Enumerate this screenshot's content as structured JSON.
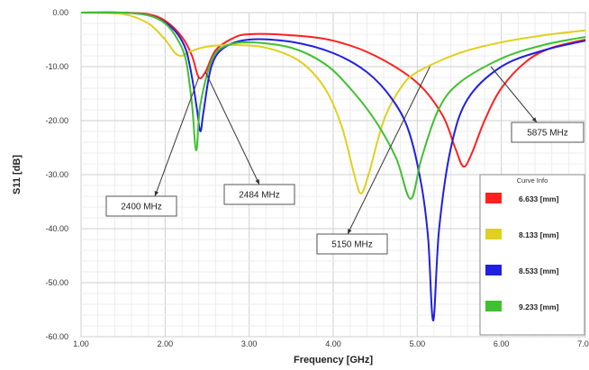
{
  "chart_data": {
    "type": "line",
    "title": "",
    "xlabel": "Frequency [GHz]",
    "ylabel": "S11 [dB]",
    "xlim": [
      1.0,
      7.0
    ],
    "ylim": [
      -60.0,
      0.0
    ],
    "x_ticks": [
      "1.00",
      "2.00",
      "3.00",
      "4.00",
      "5.00",
      "6.00",
      "7.00"
    ],
    "y_ticks": [
      "0.00",
      "-10.00",
      "-20.00",
      "-30.00",
      "-40.00",
      "-50.00",
      "-60.00"
    ],
    "grid": true,
    "legend": {
      "title": "Curve Info",
      "placement": "bottom-right"
    },
    "series": [
      {
        "name": "6.633 [mm]",
        "color": "#ff2020",
        "points": [
          [
            1.0,
            0
          ],
          [
            1.5,
            0
          ],
          [
            1.8,
            -0.3
          ],
          [
            2.0,
            -1.5
          ],
          [
            2.2,
            -4.5
          ],
          [
            2.32,
            -8
          ],
          [
            2.4,
            -12
          ],
          [
            2.48,
            -11
          ],
          [
            2.6,
            -7
          ],
          [
            2.8,
            -4.8
          ],
          [
            3.0,
            -4
          ],
          [
            3.5,
            -4.2
          ],
          [
            4.0,
            -5.2
          ],
          [
            4.5,
            -8
          ],
          [
            5.0,
            -13
          ],
          [
            5.3,
            -19
          ],
          [
            5.45,
            -25
          ],
          [
            5.55,
            -28.5
          ],
          [
            5.65,
            -26
          ],
          [
            5.8,
            -20
          ],
          [
            6.0,
            -14
          ],
          [
            6.3,
            -9
          ],
          [
            6.6,
            -6.5
          ],
          [
            7.0,
            -5
          ]
        ]
      },
      {
        "name": "8.133 [mm]",
        "color": "#e0d020",
        "points": [
          [
            1.0,
            0
          ],
          [
            1.5,
            -0.3
          ],
          [
            1.8,
            -2
          ],
          [
            2.0,
            -5
          ],
          [
            2.12,
            -7.5
          ],
          [
            2.2,
            -8
          ],
          [
            2.3,
            -7.2
          ],
          [
            2.5,
            -6.3
          ],
          [
            2.8,
            -6
          ],
          [
            3.2,
            -6.5
          ],
          [
            3.6,
            -9
          ],
          [
            3.9,
            -14
          ],
          [
            4.1,
            -21
          ],
          [
            4.25,
            -30
          ],
          [
            4.33,
            -33.5
          ],
          [
            4.42,
            -30
          ],
          [
            4.6,
            -20
          ],
          [
            4.8,
            -14
          ],
          [
            5.0,
            -11
          ],
          [
            5.5,
            -7.5
          ],
          [
            6.0,
            -5.5
          ],
          [
            6.5,
            -4.2
          ],
          [
            7.0,
            -3.3
          ]
        ]
      },
      {
        "name": "8.533 [mm]",
        "color": "#2020e0",
        "points": [
          [
            1.0,
            0
          ],
          [
            1.5,
            0
          ],
          [
            1.8,
            -0.5
          ],
          [
            2.0,
            -1.8
          ],
          [
            2.15,
            -4
          ],
          [
            2.25,
            -7
          ],
          [
            2.32,
            -12
          ],
          [
            2.38,
            -18
          ],
          [
            2.42,
            -22
          ],
          [
            2.46,
            -18
          ],
          [
            2.55,
            -10
          ],
          [
            2.7,
            -6.5
          ],
          [
            3.0,
            -5
          ],
          [
            3.5,
            -5.4
          ],
          [
            4.0,
            -7.5
          ],
          [
            4.4,
            -11
          ],
          [
            4.7,
            -16
          ],
          [
            4.9,
            -22
          ],
          [
            5.05,
            -32
          ],
          [
            5.13,
            -42
          ],
          [
            5.19,
            -57
          ],
          [
            5.26,
            -40
          ],
          [
            5.4,
            -25
          ],
          [
            5.6,
            -16
          ],
          [
            6.0,
            -10
          ],
          [
            6.5,
            -7
          ],
          [
            7.0,
            -5.2
          ]
        ]
      },
      {
        "name": "9.233 [mm]",
        "color": "#40c030",
        "points": [
          [
            1.0,
            0
          ],
          [
            1.5,
            0
          ],
          [
            1.8,
            -0.5
          ],
          [
            2.0,
            -2
          ],
          [
            2.15,
            -5
          ],
          [
            2.25,
            -9
          ],
          [
            2.32,
            -17
          ],
          [
            2.37,
            -25.5
          ],
          [
            2.42,
            -17
          ],
          [
            2.55,
            -9
          ],
          [
            2.7,
            -6.3
          ],
          [
            3.0,
            -5.5
          ],
          [
            3.5,
            -6.5
          ],
          [
            3.9,
            -9.5
          ],
          [
            4.2,
            -14
          ],
          [
            4.5,
            -20
          ],
          [
            4.75,
            -27
          ],
          [
            4.92,
            -34.5
          ],
          [
            5.05,
            -27
          ],
          [
            5.25,
            -18
          ],
          [
            5.5,
            -13
          ],
          [
            6.0,
            -8.5
          ],
          [
            6.5,
            -6
          ],
          [
            7.0,
            -4.5
          ]
        ]
      }
    ],
    "annotations": [
      {
        "text": "2400 MHz",
        "target": [
          2.4,
          -12
        ]
      },
      {
        "text": "2484 MHz",
        "target": [
          2.48,
          -11
        ]
      },
      {
        "text": "5150 MHz",
        "target": [
          5.15,
          -10
        ]
      },
      {
        "text": "5875 MHz",
        "target": [
          5.875,
          -10
        ]
      }
    ]
  }
}
